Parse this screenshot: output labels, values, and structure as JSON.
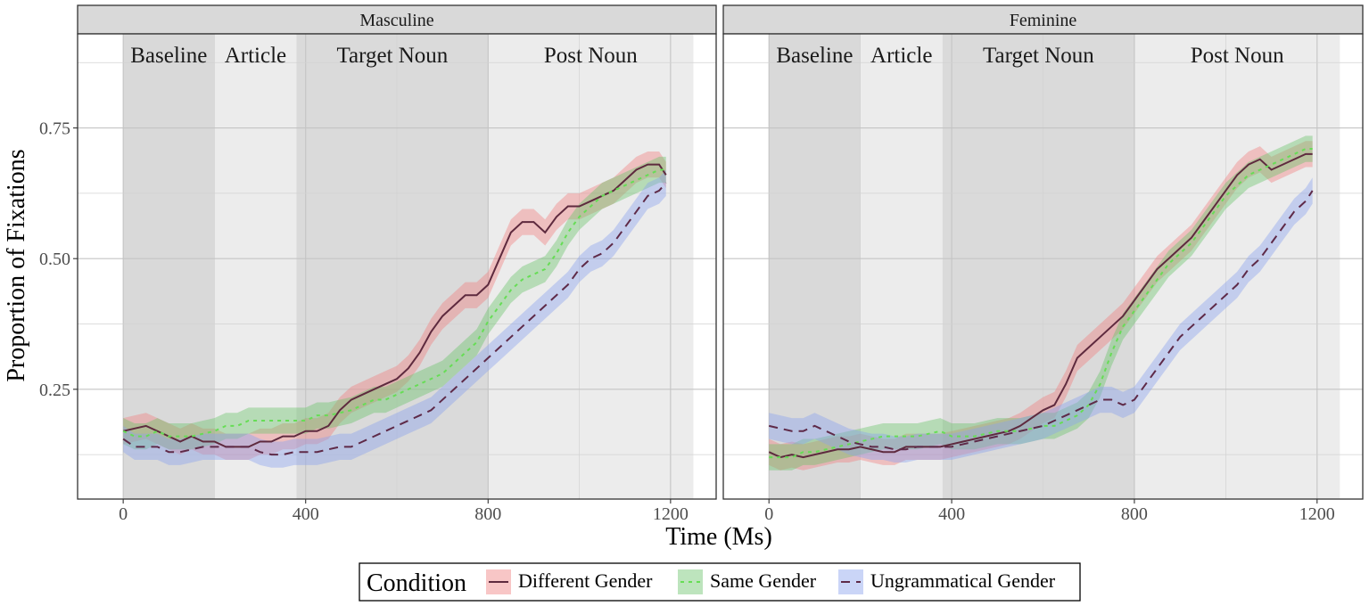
{
  "chart_data": {
    "type": "line",
    "xlabel": "Time (Ms)",
    "ylabel": "Proportion of Fixations",
    "xlim": [
      -100,
      1300
    ],
    "ylim": [
      0.04,
      0.93
    ],
    "x_ticks": [
      0,
      400,
      800,
      1200
    ],
    "y_ticks": [
      0.25,
      0.5,
      0.75
    ],
    "x_tick_labels": [
      "0",
      "400",
      "800",
      "1200"
    ],
    "y_tick_labels": [
      "0.25",
      "0.50",
      "0.75"
    ],
    "grid": true,
    "legend": {
      "title": "Condition",
      "position": "bottom",
      "entries": [
        "Different Gender",
        "Same Gender",
        "Ungrammatical Gender"
      ]
    },
    "regions": [
      {
        "label": "Baseline",
        "start": 0,
        "end": 200,
        "color": "#d9d9d9"
      },
      {
        "label": "Article",
        "start": 200,
        "end": 380,
        "color": "#ececec"
      },
      {
        "label": "Target Noun",
        "start": 380,
        "end": 800,
        "color": "#dadada"
      },
      {
        "label": "Post Noun",
        "start": 800,
        "end": 1250,
        "color": "#ececec"
      }
    ],
    "series_style": [
      {
        "name": "Different Gender",
        "line": "#5e2a3e",
        "ribbon": "#f08080",
        "dash": ""
      },
      {
        "name": "Same Gender",
        "line": "#66dd55",
        "ribbon": "#6cc36c",
        "dash": "4,5"
      },
      {
        "name": "Ungrammatical Gender",
        "line": "#5e2a48",
        "ribbon": "#8aa2ee",
        "dash": "10,7"
      }
    ],
    "band_halfwidth": 0.025,
    "panels": [
      {
        "title": "Masculine",
        "series": [
          {
            "name": "Different Gender",
            "x": [
              0,
              25,
              50,
              75,
              100,
              125,
              150,
              175,
              200,
              225,
              250,
              275,
              300,
              325,
              350,
              375,
              400,
              425,
              450,
              475,
              500,
              525,
              550,
              575,
              600,
              625,
              650,
              675,
              700,
              725,
              750,
              775,
              800,
              825,
              850,
              875,
              900,
              925,
              950,
              975,
              1000,
              1025,
              1050,
              1075,
              1100,
              1125,
              1150,
              1175,
              1190
            ],
            "y": [
              0.17,
              0.175,
              0.18,
              0.17,
              0.16,
              0.15,
              0.16,
              0.15,
              0.15,
              0.14,
              0.14,
              0.14,
              0.15,
              0.15,
              0.16,
              0.16,
              0.17,
              0.17,
              0.18,
              0.21,
              0.23,
              0.24,
              0.25,
              0.26,
              0.27,
              0.29,
              0.32,
              0.36,
              0.39,
              0.41,
              0.43,
              0.43,
              0.45,
              0.5,
              0.55,
              0.57,
              0.57,
              0.55,
              0.58,
              0.6,
              0.6,
              0.61,
              0.62,
              0.63,
              0.65,
              0.67,
              0.68,
              0.68,
              0.66
            ]
          },
          {
            "name": "Same Gender",
            "x": [
              0,
              25,
              50,
              75,
              100,
              125,
              150,
              175,
              200,
              225,
              250,
              275,
              300,
              325,
              350,
              375,
              400,
              425,
              450,
              475,
              500,
              525,
              550,
              575,
              600,
              625,
              650,
              675,
              700,
              725,
              750,
              775,
              800,
              825,
              850,
              875,
              900,
              925,
              950,
              975,
              1000,
              1025,
              1050,
              1075,
              1100,
              1125,
              1150,
              1175,
              1190
            ],
            "y": [
              0.17,
              0.16,
              0.16,
              0.17,
              0.16,
              0.16,
              0.16,
              0.165,
              0.17,
              0.18,
              0.18,
              0.19,
              0.19,
              0.19,
              0.19,
              0.19,
              0.19,
              0.2,
              0.2,
              0.205,
              0.21,
              0.22,
              0.23,
              0.23,
              0.24,
              0.25,
              0.26,
              0.27,
              0.28,
              0.3,
              0.32,
              0.34,
              0.38,
              0.41,
              0.44,
              0.46,
              0.47,
              0.48,
              0.51,
              0.55,
              0.58,
              0.6,
              0.62,
              0.63,
              0.64,
              0.65,
              0.66,
              0.67,
              0.67
            ]
          },
          {
            "name": "Ungrammatical Gender",
            "x": [
              0,
              25,
              50,
              75,
              100,
              125,
              150,
              175,
              200,
              225,
              250,
              275,
              300,
              325,
              350,
              375,
              400,
              425,
              450,
              475,
              500,
              525,
              550,
              575,
              600,
              625,
              650,
              675,
              700,
              725,
              750,
              775,
              800,
              825,
              850,
              875,
              900,
              925,
              950,
              975,
              1000,
              1025,
              1050,
              1075,
              1100,
              1125,
              1150,
              1175,
              1190
            ],
            "y": [
              0.155,
              0.14,
              0.14,
              0.14,
              0.13,
              0.13,
              0.135,
              0.14,
              0.14,
              0.14,
              0.14,
              0.14,
              0.13,
              0.125,
              0.125,
              0.13,
              0.13,
              0.13,
              0.135,
              0.14,
              0.14,
              0.15,
              0.16,
              0.17,
              0.18,
              0.19,
              0.2,
              0.21,
              0.23,
              0.25,
              0.27,
              0.29,
              0.31,
              0.33,
              0.35,
              0.37,
              0.39,
              0.41,
              0.43,
              0.45,
              0.48,
              0.5,
              0.51,
              0.53,
              0.56,
              0.59,
              0.62,
              0.63,
              0.645
            ]
          }
        ]
      },
      {
        "title": "Feminine",
        "series": [
          {
            "name": "Different Gender",
            "x": [
              0,
              25,
              50,
              75,
              100,
              125,
              150,
              175,
              200,
              225,
              250,
              275,
              300,
              325,
              350,
              375,
              400,
              425,
              450,
              475,
              500,
              525,
              550,
              575,
              600,
              625,
              650,
              675,
              700,
              725,
              750,
              775,
              800,
              825,
              850,
              875,
              900,
              925,
              950,
              975,
              1000,
              1025,
              1050,
              1075,
              1100,
              1125,
              1150,
              1175,
              1190
            ],
            "y": [
              0.13,
              0.12,
              0.125,
              0.12,
              0.125,
              0.13,
              0.135,
              0.135,
              0.14,
              0.135,
              0.13,
              0.13,
              0.14,
              0.14,
              0.14,
              0.14,
              0.145,
              0.15,
              0.155,
              0.16,
              0.165,
              0.17,
              0.18,
              0.195,
              0.21,
              0.22,
              0.26,
              0.31,
              0.33,
              0.35,
              0.37,
              0.39,
              0.42,
              0.45,
              0.48,
              0.5,
              0.52,
              0.54,
              0.57,
              0.6,
              0.63,
              0.66,
              0.68,
              0.69,
              0.67,
              0.68,
              0.69,
              0.7,
              0.7
            ]
          },
          {
            "name": "Same Gender",
            "x": [
              0,
              25,
              50,
              75,
              100,
              125,
              150,
              175,
              200,
              225,
              250,
              275,
              300,
              325,
              350,
              375,
              400,
              425,
              450,
              475,
              500,
              525,
              550,
              575,
              600,
              625,
              650,
              675,
              700,
              725,
              750,
              775,
              800,
              825,
              850,
              875,
              900,
              925,
              950,
              975,
              1000,
              1025,
              1050,
              1075,
              1100,
              1125,
              1150,
              1175,
              1190
            ],
            "y": [
              0.12,
              0.12,
              0.12,
              0.13,
              0.13,
              0.135,
              0.14,
              0.145,
              0.15,
              0.155,
              0.16,
              0.16,
              0.16,
              0.16,
              0.165,
              0.17,
              0.16,
              0.16,
              0.16,
              0.165,
              0.17,
              0.17,
              0.17,
              0.175,
              0.18,
              0.18,
              0.19,
              0.2,
              0.22,
              0.26,
              0.32,
              0.37,
              0.4,
              0.43,
              0.46,
              0.49,
              0.51,
              0.53,
              0.56,
              0.59,
              0.62,
              0.64,
              0.66,
              0.67,
              0.68,
              0.69,
              0.7,
              0.71,
              0.71
            ]
          },
          {
            "name": "Ungrammatical Gender",
            "x": [
              0,
              25,
              50,
              75,
              100,
              125,
              150,
              175,
              200,
              225,
              250,
              275,
              300,
              325,
              350,
              375,
              400,
              425,
              450,
              475,
              500,
              525,
              550,
              575,
              600,
              625,
              650,
              675,
              700,
              725,
              750,
              775,
              800,
              825,
              850,
              875,
              900,
              925,
              950,
              975,
              1000,
              1025,
              1050,
              1075,
              1100,
              1125,
              1150,
              1175,
              1190
            ],
            "y": [
              0.18,
              0.175,
              0.17,
              0.17,
              0.18,
              0.17,
              0.16,
              0.15,
              0.145,
              0.14,
              0.14,
              0.135,
              0.135,
              0.14,
              0.14,
              0.14,
              0.14,
              0.145,
              0.15,
              0.155,
              0.16,
              0.165,
              0.17,
              0.175,
              0.18,
              0.19,
              0.2,
              0.21,
              0.22,
              0.23,
              0.23,
              0.22,
              0.23,
              0.26,
              0.29,
              0.32,
              0.35,
              0.37,
              0.39,
              0.41,
              0.43,
              0.45,
              0.48,
              0.5,
              0.53,
              0.56,
              0.59,
              0.61,
              0.63
            ]
          }
        ]
      }
    ]
  }
}
